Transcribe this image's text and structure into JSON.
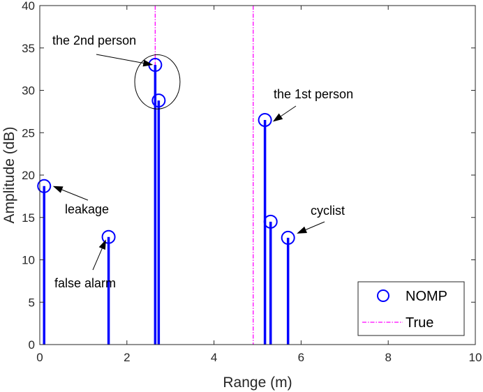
{
  "chart_data": {
    "type": "stem",
    "xlabel": "Range (m)",
    "ylabel": "Amplitude (dB)",
    "xlim": [
      0,
      10
    ],
    "ylim": [
      0,
      40
    ],
    "xticks": [
      0,
      2,
      4,
      6,
      8,
      10
    ],
    "yticks": [
      0,
      5,
      10,
      15,
      20,
      25,
      30,
      35,
      40
    ],
    "grid": false,
    "legend_position": "bottom-right",
    "series": [
      {
        "name": "NOMP",
        "color": "#0000ff",
        "marker": "circle",
        "points": [
          {
            "x": 0.1,
            "y": 18.7
          },
          {
            "x": 1.58,
            "y": 12.7
          },
          {
            "x": 2.65,
            "y": 33.0
          },
          {
            "x": 2.73,
            "y": 28.8
          },
          {
            "x": 5.17,
            "y": 26.5
          },
          {
            "x": 5.3,
            "y": 14.5
          },
          {
            "x": 5.7,
            "y": 12.6
          }
        ]
      },
      {
        "name": "True",
        "color": "#ff00ff",
        "style": "dash-dot",
        "x_positions": [
          2.65,
          4.9
        ]
      }
    ],
    "highlight_circle": {
      "x": 2.7,
      "y": 31.0,
      "radius_x_units": 0.52,
      "radius_y_units": 3.2
    },
    "annotations": [
      {
        "id": "second",
        "text": "the 2nd person",
        "target_x": 2.6,
        "target_y": 33.0
      },
      {
        "id": "first",
        "text": "the 1st person",
        "target_x": 5.35,
        "target_y": 26.3
      },
      {
        "id": "leakage",
        "text": "leakage",
        "target_x": 0.3,
        "target_y": 18.7
      },
      {
        "id": "cyclist",
        "text": "cyclist",
        "target_x": 5.9,
        "target_y": 13.1
      },
      {
        "id": "falsealarm",
        "text": "false alarm",
        "target_x": 1.52,
        "target_y": 12.4
      }
    ]
  }
}
